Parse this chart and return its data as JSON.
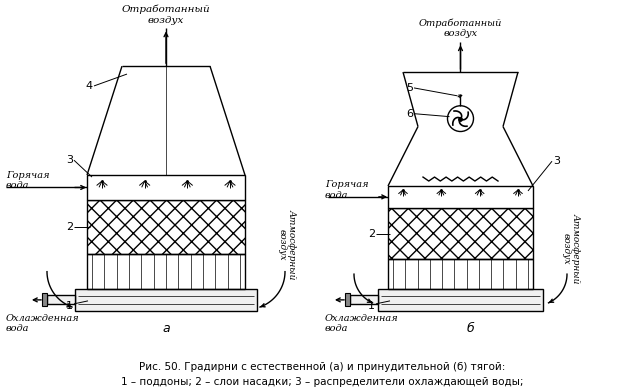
{
  "title_caption": "Рис. 50. Градирни с естественной (а) и принудительной (б) тягой:",
  "subtitle_caption": "1 – поддоны; 2 – слои насадки; 3 – распределители охлаждающей воды;",
  "bg_color": "#ffffff",
  "line_color": "#000000",
  "label_a": "а",
  "label_b": "б",
  "label_top_left": "Отработанный\nвоздух",
  "label_top_right": "Отработанный\nвоздух",
  "label_atm_left": "Атмосферный\nвоздух",
  "label_atm_right": "Атмосферный\nвоздух",
  "label_hot_left": "Горячая\nвода",
  "label_hot_right": "Горячая\nвода",
  "label_cold_left": "Охлажденная\nвода",
  "label_cold_right": "Охлажденная\nвода"
}
